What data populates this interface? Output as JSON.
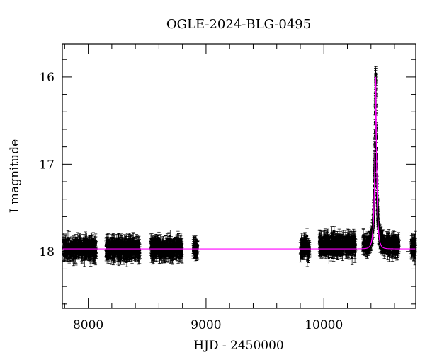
{
  "chart_data": {
    "type": "scatter",
    "title": "OGLE-2024-BLG-0495",
    "xlabel": "HJD - 2450000",
    "ylabel": "I magnitude",
    "xlim": [
      7780,
      10780
    ],
    "ylim": [
      18.65,
      15.62
    ],
    "y_inverted": true,
    "grid": false,
    "legend": "none",
    "xticks": [
      8000,
      9000,
      10000
    ],
    "xtick_labels": [
      "8000",
      "9000",
      "10000"
    ],
    "yticks": [
      16,
      17,
      18
    ],
    "ytick_labels": [
      "16",
      "17",
      "18"
    ],
    "colors": {
      "points": "#000000",
      "model": "#ff00ff"
    },
    "series": [
      {
        "kind": "observations",
        "error_bars": true,
        "seasons": [
          {
            "x_range": [
              7790,
              8070
            ],
            "mag_center": 17.97,
            "mag_scatter": 0.09
          },
          {
            "x_range": [
              8150,
              8440
            ],
            "mag_center": 17.97,
            "mag_scatter": 0.09
          },
          {
            "x_range": [
              8530,
              8800
            ],
            "mag_center": 17.97,
            "mag_scatter": 0.09
          },
          {
            "x_range": [
              8890,
              8930
            ],
            "mag_center": 17.97,
            "mag_scatter": 0.07
          },
          {
            "x_range": [
              9800,
              9880
            ],
            "mag_center": 17.95,
            "mag_scatter": 0.09
          },
          {
            "x_range": [
              9960,
              10270
            ],
            "mag_center": 17.93,
            "mag_scatter": 0.09
          },
          {
            "x_range": [
              10330,
              10640
            ],
            "mag_center": 17.93,
            "mag_scatter": 0.08
          },
          {
            "x_range": [
              10740,
              10780
            ],
            "mag_center": 17.95,
            "mag_scatter": 0.08
          }
        ]
      },
      {
        "kind": "model",
        "baseline_mag": 17.97,
        "peak_time": 10440,
        "peak_mag": 16.0,
        "tE_days": 20,
        "u0": 0.16
      }
    ]
  }
}
